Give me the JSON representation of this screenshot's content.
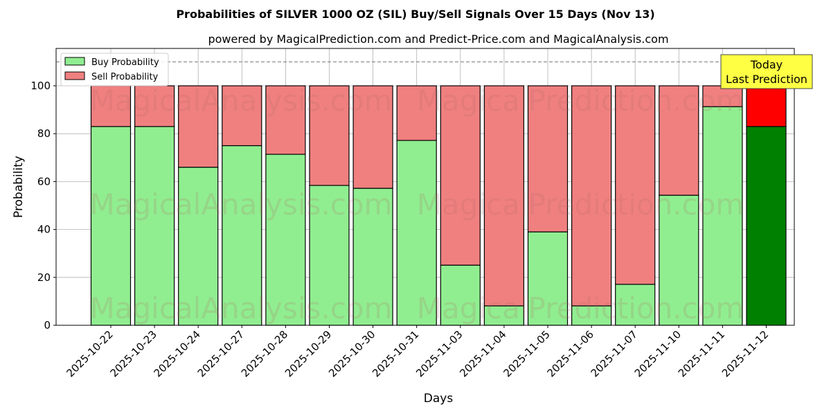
{
  "chart_data": {
    "type": "bar",
    "stacked": true,
    "title": "Probabilities of SILVER 1000 OZ (SIL) Buy/Sell Signals Over 15 Days (Nov 13)",
    "subtitle": "powered by MagicalPrediction.com and Predict-Price.com and MagicalAnalysis.com",
    "xlabel": "Days",
    "ylabel": "Probability",
    "ylim": [
      0,
      115.6
    ],
    "yticks": [
      0,
      20,
      40,
      60,
      80,
      100
    ],
    "grid": true,
    "legend_position": "top-left",
    "reference_line": 110,
    "categories": [
      "2025-10-22",
      "2025-10-23",
      "2025-10-24",
      "2025-10-27",
      "2025-10-28",
      "2025-10-29",
      "2025-10-30",
      "2025-10-31",
      "2025-11-03",
      "2025-11-04",
      "2025-11-05",
      "2025-11-06",
      "2025-11-07",
      "2025-11-10",
      "2025-11-11",
      "2025-11-12"
    ],
    "series": [
      {
        "name": "Buy Probability",
        "color": "#90ee90",
        "values": [
          83,
          83,
          66,
          75,
          71.4,
          58.4,
          57.2,
          77.2,
          25.1,
          8.1,
          39,
          8.1,
          17.1,
          54.3,
          91.3,
          83
        ]
      },
      {
        "name": "Sell Probability",
        "color": "#f08080",
        "values": [
          17,
          17,
          34,
          25,
          28.6,
          41.6,
          42.8,
          22.8,
          74.9,
          91.9,
          61,
          91.9,
          82.9,
          45.7,
          8.7,
          17
        ]
      }
    ],
    "highlight": {
      "index": 15,
      "buy_color": "#008000",
      "sell_color": "#ff0000"
    },
    "annotation": {
      "line1": "Today",
      "line2": "Last Prediction",
      "color": "#ffff44"
    },
    "watermarks": [
      "MagicalAnalysis.com",
      "MagicalPrediction.com"
    ]
  }
}
